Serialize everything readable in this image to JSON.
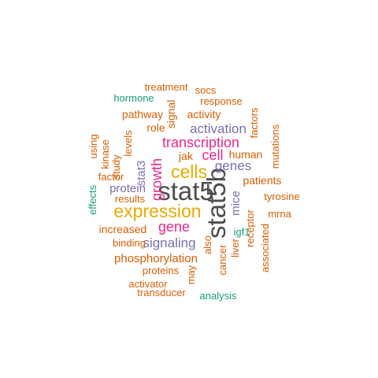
{
  "colors": {
    "gray": "#4D4D4D",
    "orange": "#D95F02",
    "gold": "#E6AB02",
    "magenta": "#E7298A",
    "purple": "#7570B3",
    "teal": "#1B9E77"
  },
  "words": [
    {
      "text": "stat5",
      "color": "gray"
    },
    {
      "text": "stat5b",
      "color": "gray"
    },
    {
      "text": "expression",
      "color": "gold"
    },
    {
      "text": "cells",
      "color": "gold"
    },
    {
      "text": "transcription",
      "color": "magenta"
    },
    {
      "text": "growth",
      "color": "magenta"
    },
    {
      "text": "cell",
      "color": "magenta"
    },
    {
      "text": "gene",
      "color": "magenta"
    },
    {
      "text": "signaling",
      "color": "purple"
    },
    {
      "text": "activation",
      "color": "purple"
    },
    {
      "text": "genes",
      "color": "purple"
    },
    {
      "text": "protein",
      "color": "purple"
    },
    {
      "text": "stat3",
      "color": "purple"
    },
    {
      "text": "mice",
      "color": "purple"
    },
    {
      "text": "phosphorylation",
      "color": "orange"
    },
    {
      "text": "human",
      "color": "orange"
    },
    {
      "text": "patients",
      "color": "orange"
    },
    {
      "text": "pathway",
      "color": "orange"
    },
    {
      "text": "activity",
      "color": "orange"
    },
    {
      "text": "increased",
      "color": "orange"
    },
    {
      "text": "jak",
      "color": "orange"
    },
    {
      "text": "role",
      "color": "orange"
    },
    {
      "text": "signal",
      "color": "orange"
    },
    {
      "text": "response",
      "color": "orange"
    },
    {
      "text": "treatment",
      "color": "orange"
    },
    {
      "text": "socs",
      "color": "orange"
    },
    {
      "text": "factors",
      "color": "orange"
    },
    {
      "text": "mutations",
      "color": "orange"
    },
    {
      "text": "tyrosine",
      "color": "orange"
    },
    {
      "text": "mrna",
      "color": "orange"
    },
    {
      "text": "associated",
      "color": "orange"
    },
    {
      "text": "receptor",
      "color": "orange"
    },
    {
      "text": "liver",
      "color": "orange"
    },
    {
      "text": "cancer",
      "color": "orange"
    },
    {
      "text": "also",
      "color": "orange"
    },
    {
      "text": "may",
      "color": "orange"
    },
    {
      "text": "proteins",
      "color": "orange"
    },
    {
      "text": "activator",
      "color": "orange"
    },
    {
      "text": "transducer",
      "color": "orange"
    },
    {
      "text": "binding",
      "color": "orange"
    },
    {
      "text": "results",
      "color": "orange"
    },
    {
      "text": "factor",
      "color": "orange"
    },
    {
      "text": "study",
      "color": "orange"
    },
    {
      "text": "kinase",
      "color": "orange"
    },
    {
      "text": "using",
      "color": "orange"
    },
    {
      "text": "levels",
      "color": "orange"
    },
    {
      "text": "hormone",
      "color": "teal"
    },
    {
      "text": "effects",
      "color": "teal"
    },
    {
      "text": "igf1",
      "color": "teal"
    },
    {
      "text": "analysis",
      "color": "teal"
    }
  ]
}
